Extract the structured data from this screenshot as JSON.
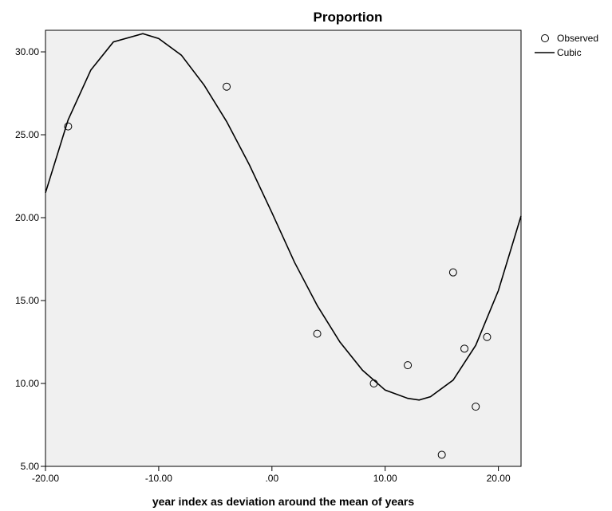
{
  "chart_data": {
    "type": "scatter",
    "title": "Proportion",
    "xlabel": "year index as deviation around the mean of years",
    "ylabel": "",
    "xlim": [
      -20,
      22
    ],
    "ylim": [
      5,
      31.3
    ],
    "xticks": [
      -20,
      -10,
      0,
      10,
      20
    ],
    "xtick_labels": [
      "-20.00",
      "-10.00",
      ".00",
      "10.00",
      "20.00"
    ],
    "yticks": [
      5,
      10,
      15,
      20,
      25,
      30
    ],
    "ytick_labels": [
      "5.00",
      "10.00",
      "15.00",
      "20.00",
      "25.00",
      "30.00"
    ],
    "legend_position": "top-right, outside plot",
    "grid": false,
    "series": [
      {
        "name": "Observed",
        "kind": "scatter",
        "marker": "open-circle",
        "points": [
          {
            "x": -18,
            "y": 25.5
          },
          {
            "x": -4,
            "y": 27.9
          },
          {
            "x": 4,
            "y": 13.0
          },
          {
            "x": 9,
            "y": 10.0
          },
          {
            "x": 12,
            "y": 11.1
          },
          {
            "x": 15,
            "y": 5.7
          },
          {
            "x": 16,
            "y": 16.7
          },
          {
            "x": 17,
            "y": 12.1
          },
          {
            "x": 18,
            "y": 8.6
          },
          {
            "x": 19,
            "y": 12.8
          }
        ]
      },
      {
        "name": "Cubic",
        "kind": "line",
        "points": [
          {
            "x": -20,
            "y": 21.5
          },
          {
            "x": -18,
            "y": 25.9
          },
          {
            "x": -16,
            "y": 28.9
          },
          {
            "x": -14,
            "y": 30.6
          },
          {
            "x": -11.4,
            "y": 31.1
          },
          {
            "x": -10,
            "y": 30.8
          },
          {
            "x": -8,
            "y": 29.8
          },
          {
            "x": -6,
            "y": 28.0
          },
          {
            "x": -4,
            "y": 25.8
          },
          {
            "x": -2,
            "y": 23.2
          },
          {
            "x": 0,
            "y": 20.3
          },
          {
            "x": 2,
            "y": 17.3
          },
          {
            "x": 4,
            "y": 14.7
          },
          {
            "x": 6,
            "y": 12.5
          },
          {
            "x": 8,
            "y": 10.8
          },
          {
            "x": 10,
            "y": 9.6
          },
          {
            "x": 12,
            "y": 9.1
          },
          {
            "x": 13,
            "y": 9.0
          },
          {
            "x": 14,
            "y": 9.2
          },
          {
            "x": 16,
            "y": 10.2
          },
          {
            "x": 18,
            "y": 12.3
          },
          {
            "x": 20,
            "y": 15.6
          },
          {
            "x": 22,
            "y": 20.1
          }
        ]
      }
    ]
  },
  "colors": {
    "plot_background": "#f0f0f0",
    "axis": "#000000",
    "series": "#000000"
  }
}
